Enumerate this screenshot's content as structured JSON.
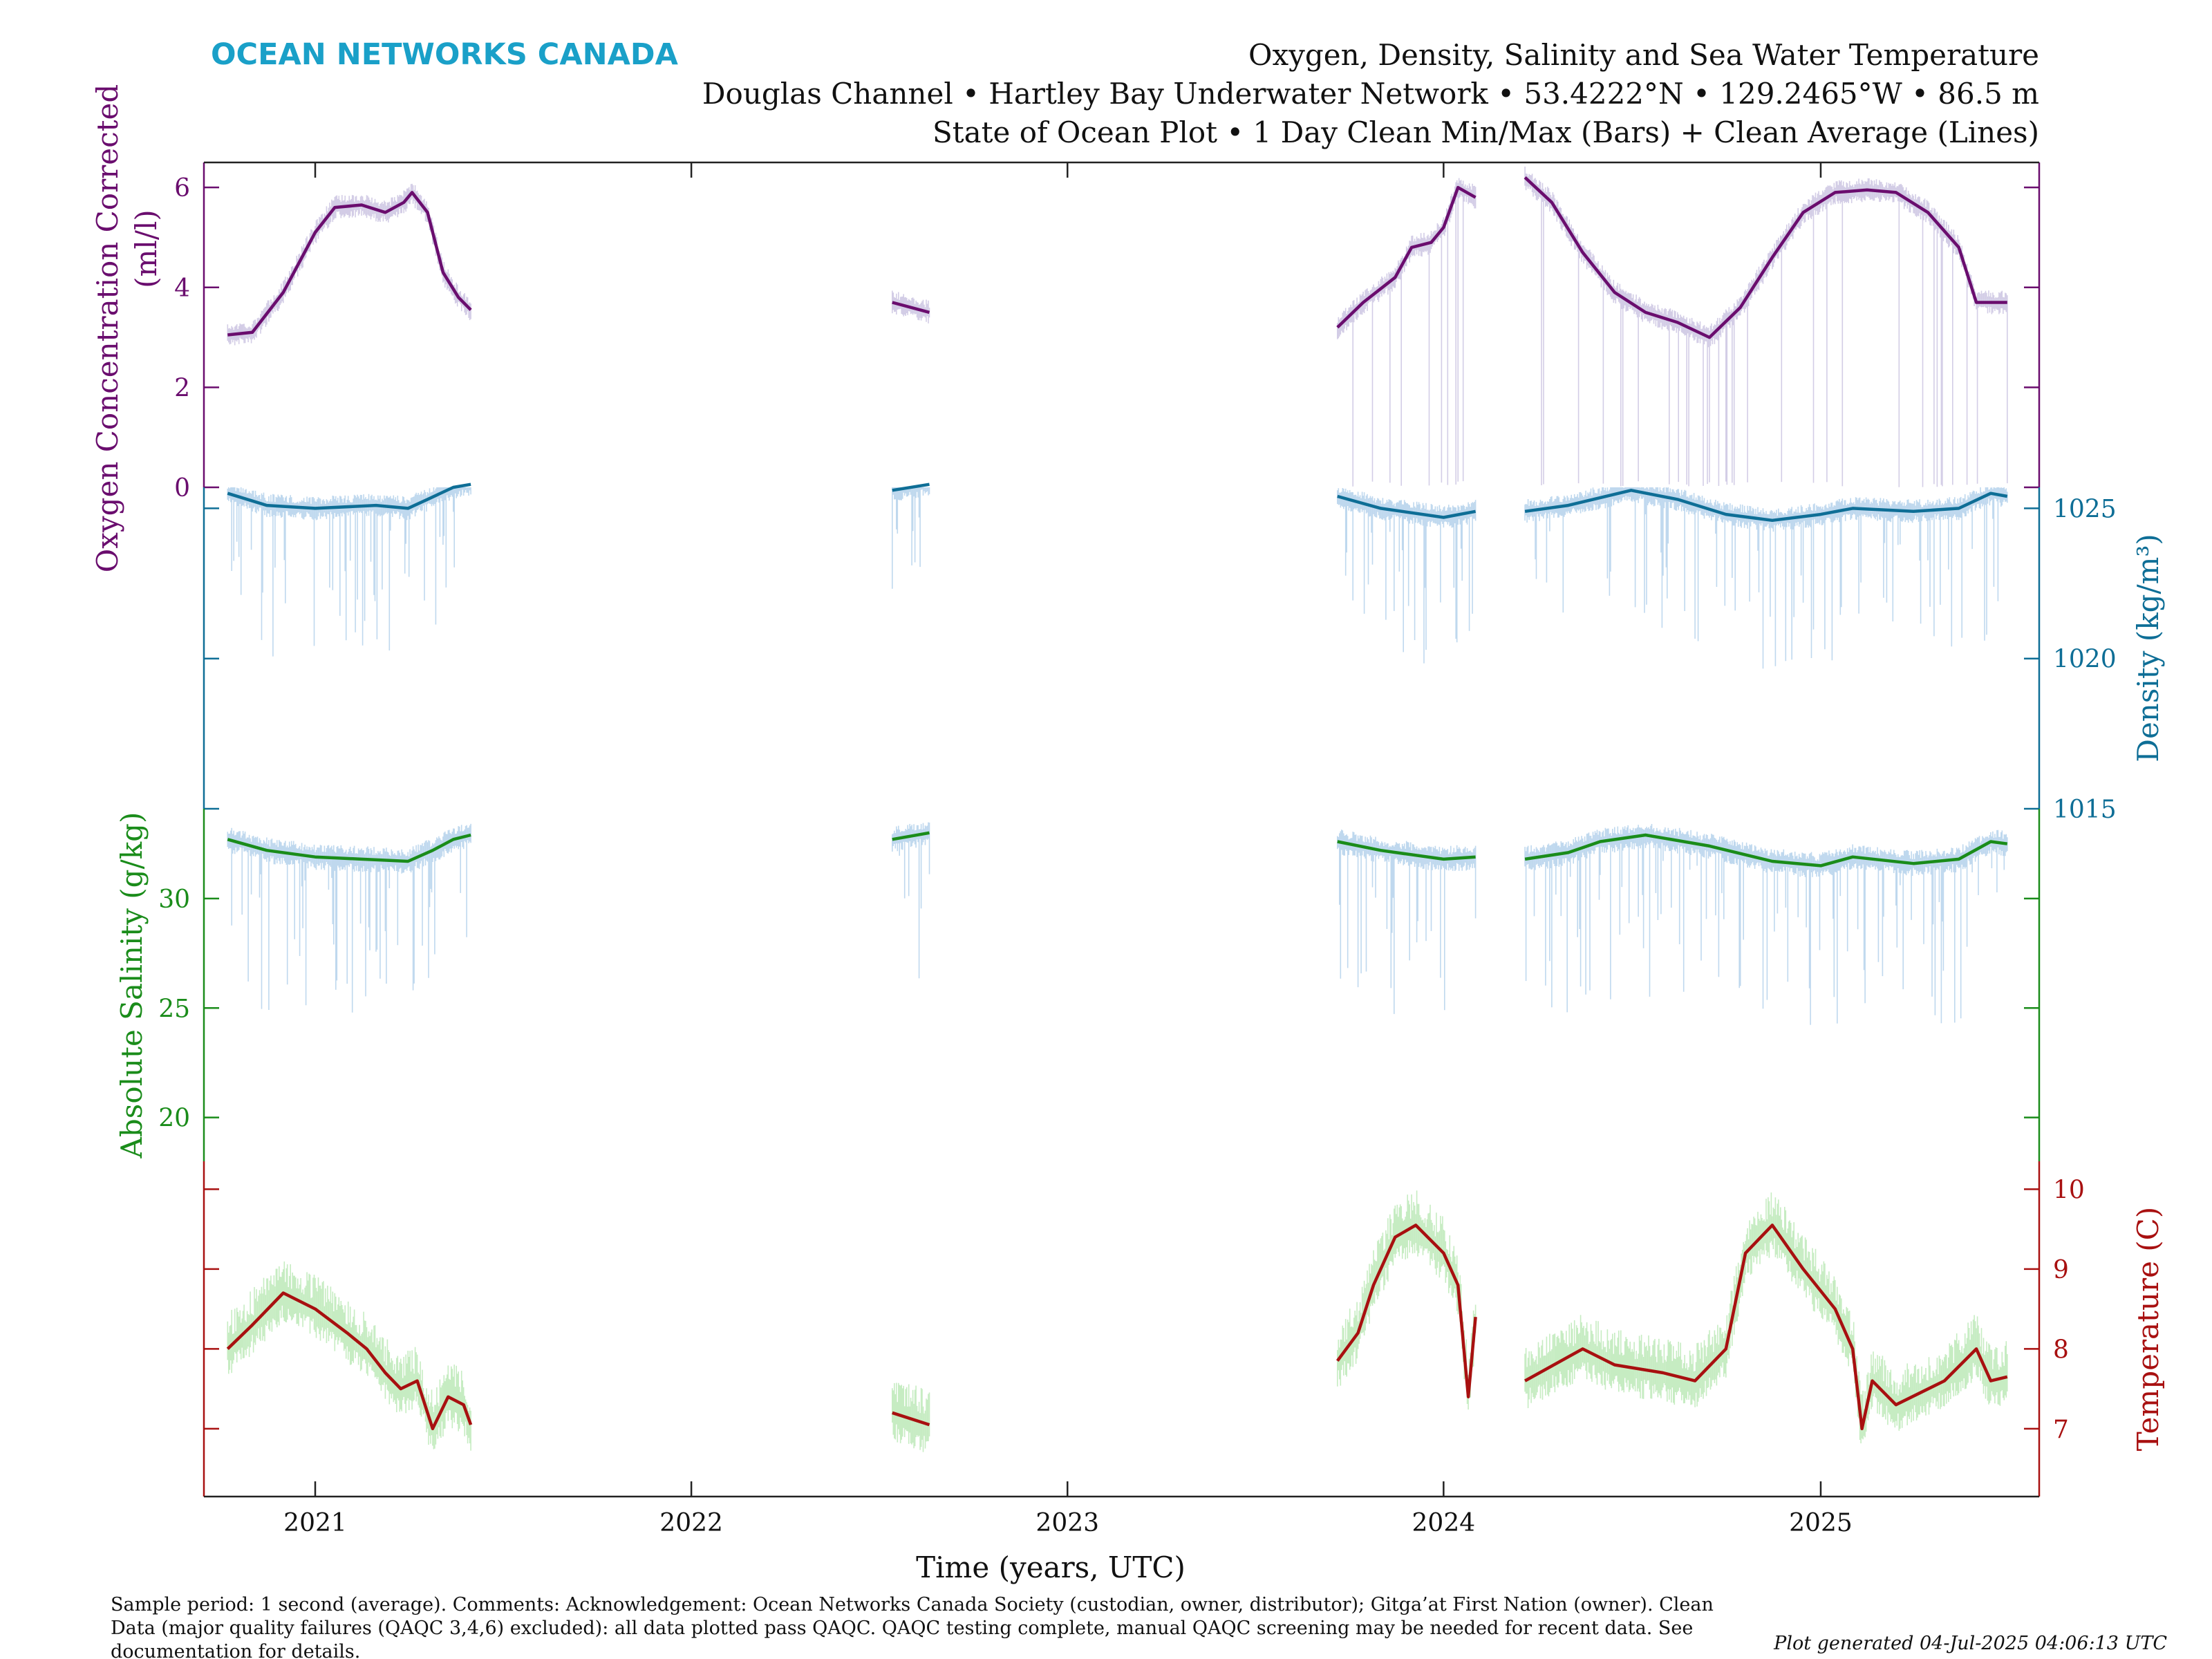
{
  "header": {
    "brand": "OCEAN NETWORKS CANADA",
    "title_line1": "Oxygen, Density, Salinity and Sea Water Temperature",
    "title_line2": "Douglas Channel • Hartley Bay Underwater Network • 53.4222°N • 129.2465°W • 86.5 m",
    "title_line3": "State of Ocean Plot • 1 Day Clean Min/Max (Bars) + Clean Average (Lines)"
  },
  "footer": {
    "line1": "Sample period: 1 second (average). Comments: Acknowledgement: Ocean Networks Canada Society (custodian, owner, distributor); Gitga’at First Nation (owner). Clean",
    "line2": "Data (major quality failures (QAQC 3,4,6) excluded): all data plotted pass QAQC. QAQC testing complete, manual QAQC screening may be needed for recent data. See",
    "line3": "documentation for details.",
    "generated": "Plot generated 04-Jul-2025 04:06:13 UTC"
  },
  "chart_data": {
    "type": "line",
    "xlabel": "Time (years, UTC)",
    "x_ticks": [
      "2021",
      "2022",
      "2023",
      "2024",
      "2025"
    ],
    "xlim": [
      "2020-09-15",
      "2025-08-01"
    ],
    "data_segments": [
      [
        "2020-10-08",
        "2021-06-01"
      ],
      [
        "2022-07-15",
        "2022-08-20"
      ],
      [
        "2023-09-20",
        "2024-02-01"
      ],
      [
        "2024-03-20",
        "2025-07-01"
      ]
    ],
    "panels": [
      {
        "name": "oxygen",
        "ylabel_line1": "Oxygen Concentration Corrected",
        "ylabel_line2": "(ml/l)",
        "unit": "ml/l",
        "axis_side": "left",
        "color": "#6a0d6e",
        "band_color": "#d3cde6",
        "ylim": [
          0,
          6.5
        ],
        "ticks": [
          0,
          2,
          4,
          6
        ],
        "average": [
          [
            "2020-10-08",
            3.05
          ],
          [
            "2020-11-01",
            3.1
          ],
          [
            "2020-12-01",
            3.9
          ],
          [
            "2021-01-01",
            5.1
          ],
          [
            "2021-01-20",
            5.6
          ],
          [
            "2021-02-15",
            5.65
          ],
          [
            "2021-03-10",
            5.5
          ],
          [
            "2021-03-28",
            5.7
          ],
          [
            "2021-04-05",
            5.9
          ],
          [
            "2021-04-20",
            5.5
          ],
          [
            "2021-05-05",
            4.3
          ],
          [
            "2021-05-20",
            3.8
          ],
          [
            "2021-06-01",
            3.55
          ],
          null,
          [
            "2022-07-15",
            3.7
          ],
          [
            "2022-08-20",
            3.5
          ],
          null,
          [
            "2023-09-20",
            3.2
          ],
          [
            "2023-10-15",
            3.7
          ],
          [
            "2023-11-15",
            4.2
          ],
          [
            "2023-12-01",
            4.8
          ],
          [
            "2023-12-20",
            4.9
          ],
          [
            "2024-01-01",
            5.2
          ],
          [
            "2024-01-15",
            6.0
          ],
          [
            "2024-02-01",
            5.8
          ],
          null,
          [
            "2024-03-20",
            6.2
          ],
          [
            "2024-04-15",
            5.7
          ],
          [
            "2024-05-15",
            4.7
          ],
          [
            "2024-06-15",
            3.9
          ],
          [
            "2024-07-15",
            3.5
          ],
          [
            "2024-08-15",
            3.3
          ],
          [
            "2024-09-15",
            3.0
          ],
          [
            "2024-10-15",
            3.6
          ],
          [
            "2024-11-15",
            4.6
          ],
          [
            "2024-12-15",
            5.5
          ],
          [
            "2025-01-15",
            5.9
          ],
          [
            "2025-02-15",
            5.95
          ],
          [
            "2025-03-15",
            5.9
          ],
          [
            "2025-04-15",
            5.5
          ],
          [
            "2025-05-15",
            4.8
          ],
          [
            "2025-06-01",
            3.7
          ],
          [
            "2025-07-01",
            3.7
          ]
        ]
      },
      {
        "name": "density",
        "ylabel": "Density (kg/m³)",
        "unit": "kg/m³",
        "axis_side": "right",
        "color": "#0e6e96",
        "band_color": "#bfd8ee",
        "ylim": [
          1015,
          1025.7
        ],
        "ticks": [
          1015,
          1020,
          1025
        ],
        "average": [
          [
            "2020-10-08",
            1025.5
          ],
          [
            "2020-11-15",
            1025.1
          ],
          [
            "2021-01-01",
            1025.0
          ],
          [
            "2021-03-01",
            1025.1
          ],
          [
            "2021-04-01",
            1025.0
          ],
          [
            "2021-04-20",
            1025.3
          ],
          [
            "2021-05-15",
            1025.7
          ],
          [
            "2021-06-01",
            1025.8
          ],
          null,
          [
            "2022-07-15",
            1025.6
          ],
          [
            "2022-08-20",
            1025.8
          ],
          null,
          [
            "2023-09-20",
            1025.4
          ],
          [
            "2023-11-01",
            1025.0
          ],
          [
            "2024-01-01",
            1024.7
          ],
          [
            "2024-02-01",
            1024.9
          ],
          null,
          [
            "2024-03-20",
            1024.9
          ],
          [
            "2024-05-01",
            1025.1
          ],
          [
            "2024-07-01",
            1025.6
          ],
          [
            "2024-08-15",
            1025.3
          ],
          [
            "2024-10-01",
            1024.8
          ],
          [
            "2024-11-15",
            1024.6
          ],
          [
            "2025-01-01",
            1024.8
          ],
          [
            "2025-02-01",
            1025.0
          ],
          [
            "2025-04-01",
            1024.9
          ],
          [
            "2025-05-15",
            1025.0
          ],
          [
            "2025-06-15",
            1025.5
          ],
          [
            "2025-07-01",
            1025.4
          ]
        ]
      },
      {
        "name": "salinity",
        "ylabel": "Absolute Salinity (g/kg)",
        "unit": "g/kg",
        "axis_side": "left",
        "color": "#1a8c1a",
        "band_color": "#bfd8ee",
        "ylim": [
          18,
          34.1
        ],
        "ticks": [
          20,
          25,
          30
        ],
        "average": [
          [
            "2020-10-08",
            32.7
          ],
          [
            "2020-11-15",
            32.2
          ],
          [
            "2021-01-01",
            31.9
          ],
          [
            "2021-02-15",
            31.8
          ],
          [
            "2021-04-01",
            31.7
          ],
          [
            "2021-04-25",
            32.2
          ],
          [
            "2021-05-15",
            32.7
          ],
          [
            "2021-06-01",
            32.9
          ],
          null,
          [
            "2022-07-15",
            32.7
          ],
          [
            "2022-08-20",
            33.0
          ],
          null,
          [
            "2023-09-20",
            32.6
          ],
          [
            "2023-11-01",
            32.2
          ],
          [
            "2024-01-01",
            31.8
          ],
          [
            "2024-02-01",
            31.9
          ],
          null,
          [
            "2024-03-20",
            31.8
          ],
          [
            "2024-05-01",
            32.1
          ],
          [
            "2024-06-01",
            32.6
          ],
          [
            "2024-07-15",
            32.9
          ],
          [
            "2024-09-15",
            32.4
          ],
          [
            "2024-11-15",
            31.7
          ],
          [
            "2025-01-01",
            31.5
          ],
          [
            "2025-02-01",
            31.9
          ],
          [
            "2025-04-01",
            31.6
          ],
          [
            "2025-05-15",
            31.8
          ],
          [
            "2025-06-15",
            32.6
          ],
          [
            "2025-07-01",
            32.5
          ]
        ]
      },
      {
        "name": "temperature",
        "ylabel": "Temperature (C)",
        "unit": "C",
        "axis_side": "right",
        "color": "#a81010",
        "band_color": "#c6ecc2",
        "ylim": [
          6.15,
          10.35
        ],
        "ticks": [
          7,
          8,
          9,
          10
        ],
        "average": [
          [
            "2020-10-08",
            8.0
          ],
          [
            "2020-11-01",
            8.3
          ],
          [
            "2020-12-01",
            8.7
          ],
          [
            "2021-01-01",
            8.5
          ],
          [
            "2021-02-01",
            8.2
          ],
          [
            "2021-02-20",
            8.0
          ],
          [
            "2021-03-10",
            7.7
          ],
          [
            "2021-03-25",
            7.5
          ],
          [
            "2021-04-10",
            7.6
          ],
          [
            "2021-04-25",
            7.0
          ],
          [
            "2021-05-10",
            7.4
          ],
          [
            "2021-05-25",
            7.3
          ],
          [
            "2021-06-01",
            7.05
          ],
          null,
          [
            "2022-07-15",
            7.2
          ],
          [
            "2022-08-20",
            7.05
          ],
          null,
          [
            "2023-09-20",
            7.85
          ],
          [
            "2023-10-10",
            8.2
          ],
          [
            "2023-10-25",
            8.8
          ],
          [
            "2023-11-15",
            9.4
          ],
          [
            "2023-12-05",
            9.55
          ],
          [
            "2024-01-01",
            9.2
          ],
          [
            "2024-01-15",
            8.8
          ],
          [
            "2024-01-25",
            7.4
          ],
          [
            "2024-02-01",
            8.4
          ],
          null,
          [
            "2024-03-20",
            7.6
          ],
          [
            "2024-05-15",
            8.0
          ],
          [
            "2024-06-15",
            7.8
          ],
          [
            "2024-08-01",
            7.7
          ],
          [
            "2024-09-01",
            7.6
          ],
          [
            "2024-10-01",
            8.0
          ],
          [
            "2024-10-20",
            9.2
          ],
          [
            "2024-11-15",
            9.55
          ],
          [
            "2024-12-15",
            9.0
          ],
          [
            "2025-01-15",
            8.5
          ],
          [
            "2025-02-01",
            8.0
          ],
          [
            "2025-02-10",
            7.0
          ],
          [
            "2025-02-20",
            7.6
          ],
          [
            "2025-03-15",
            7.3
          ],
          [
            "2025-05-01",
            7.6
          ],
          [
            "2025-06-01",
            8.0
          ],
          [
            "2025-06-15",
            7.6
          ],
          [
            "2025-07-01",
            7.65
          ]
        ]
      }
    ]
  }
}
